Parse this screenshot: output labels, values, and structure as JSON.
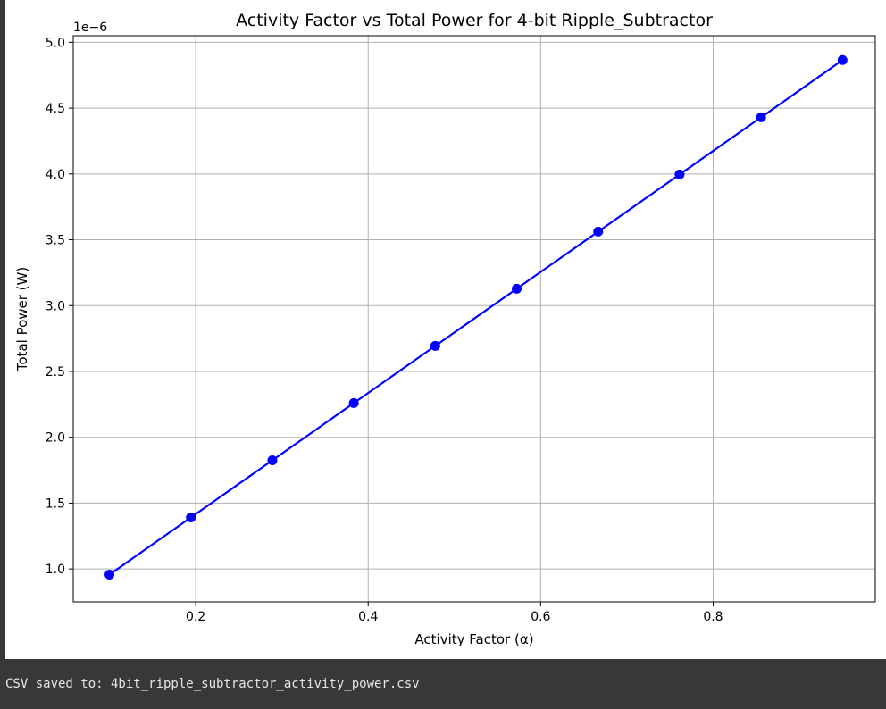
{
  "chart_data": {
    "type": "line",
    "title": "Activity Factor vs Total Power for 4-bit Ripple_Subtractor",
    "xlabel": "Activity Factor (α)",
    "ylabel": "Total Power (W)",
    "y_offset_label": "1e−6",
    "xlim": [
      0.058,
      0.988
    ],
    "ylim": [
      0.75,
      5.05
    ],
    "x_ticks": [
      0.2,
      0.4,
      0.6,
      0.8
    ],
    "x_tick_labels": [
      "0.2",
      "0.4",
      "0.6",
      "0.8"
    ],
    "y_ticks": [
      1.0,
      1.5,
      2.0,
      2.5,
      3.0,
      3.5,
      4.0,
      4.5,
      5.0
    ],
    "y_tick_labels": [
      "1.0",
      "1.5",
      "2.0",
      "2.5",
      "3.0",
      "3.5",
      "4.0",
      "4.5",
      "5.0"
    ],
    "grid": true,
    "series": [
      {
        "color": "#0000ff",
        "marker": "circle",
        "x": [
          0.1,
          0.1944,
          0.2889,
          0.3833,
          0.4778,
          0.5722,
          0.6667,
          0.7611,
          0.8556,
          0.95
        ],
        "y": [
          0.957,
          1.391,
          1.825,
          2.26,
          2.694,
          3.128,
          3.562,
          3.996,
          4.43,
          4.865
        ]
      }
    ]
  },
  "output": {
    "stdout_text": "CSV saved to: 4bit_ripple_subtractor_activity_power.csv"
  }
}
